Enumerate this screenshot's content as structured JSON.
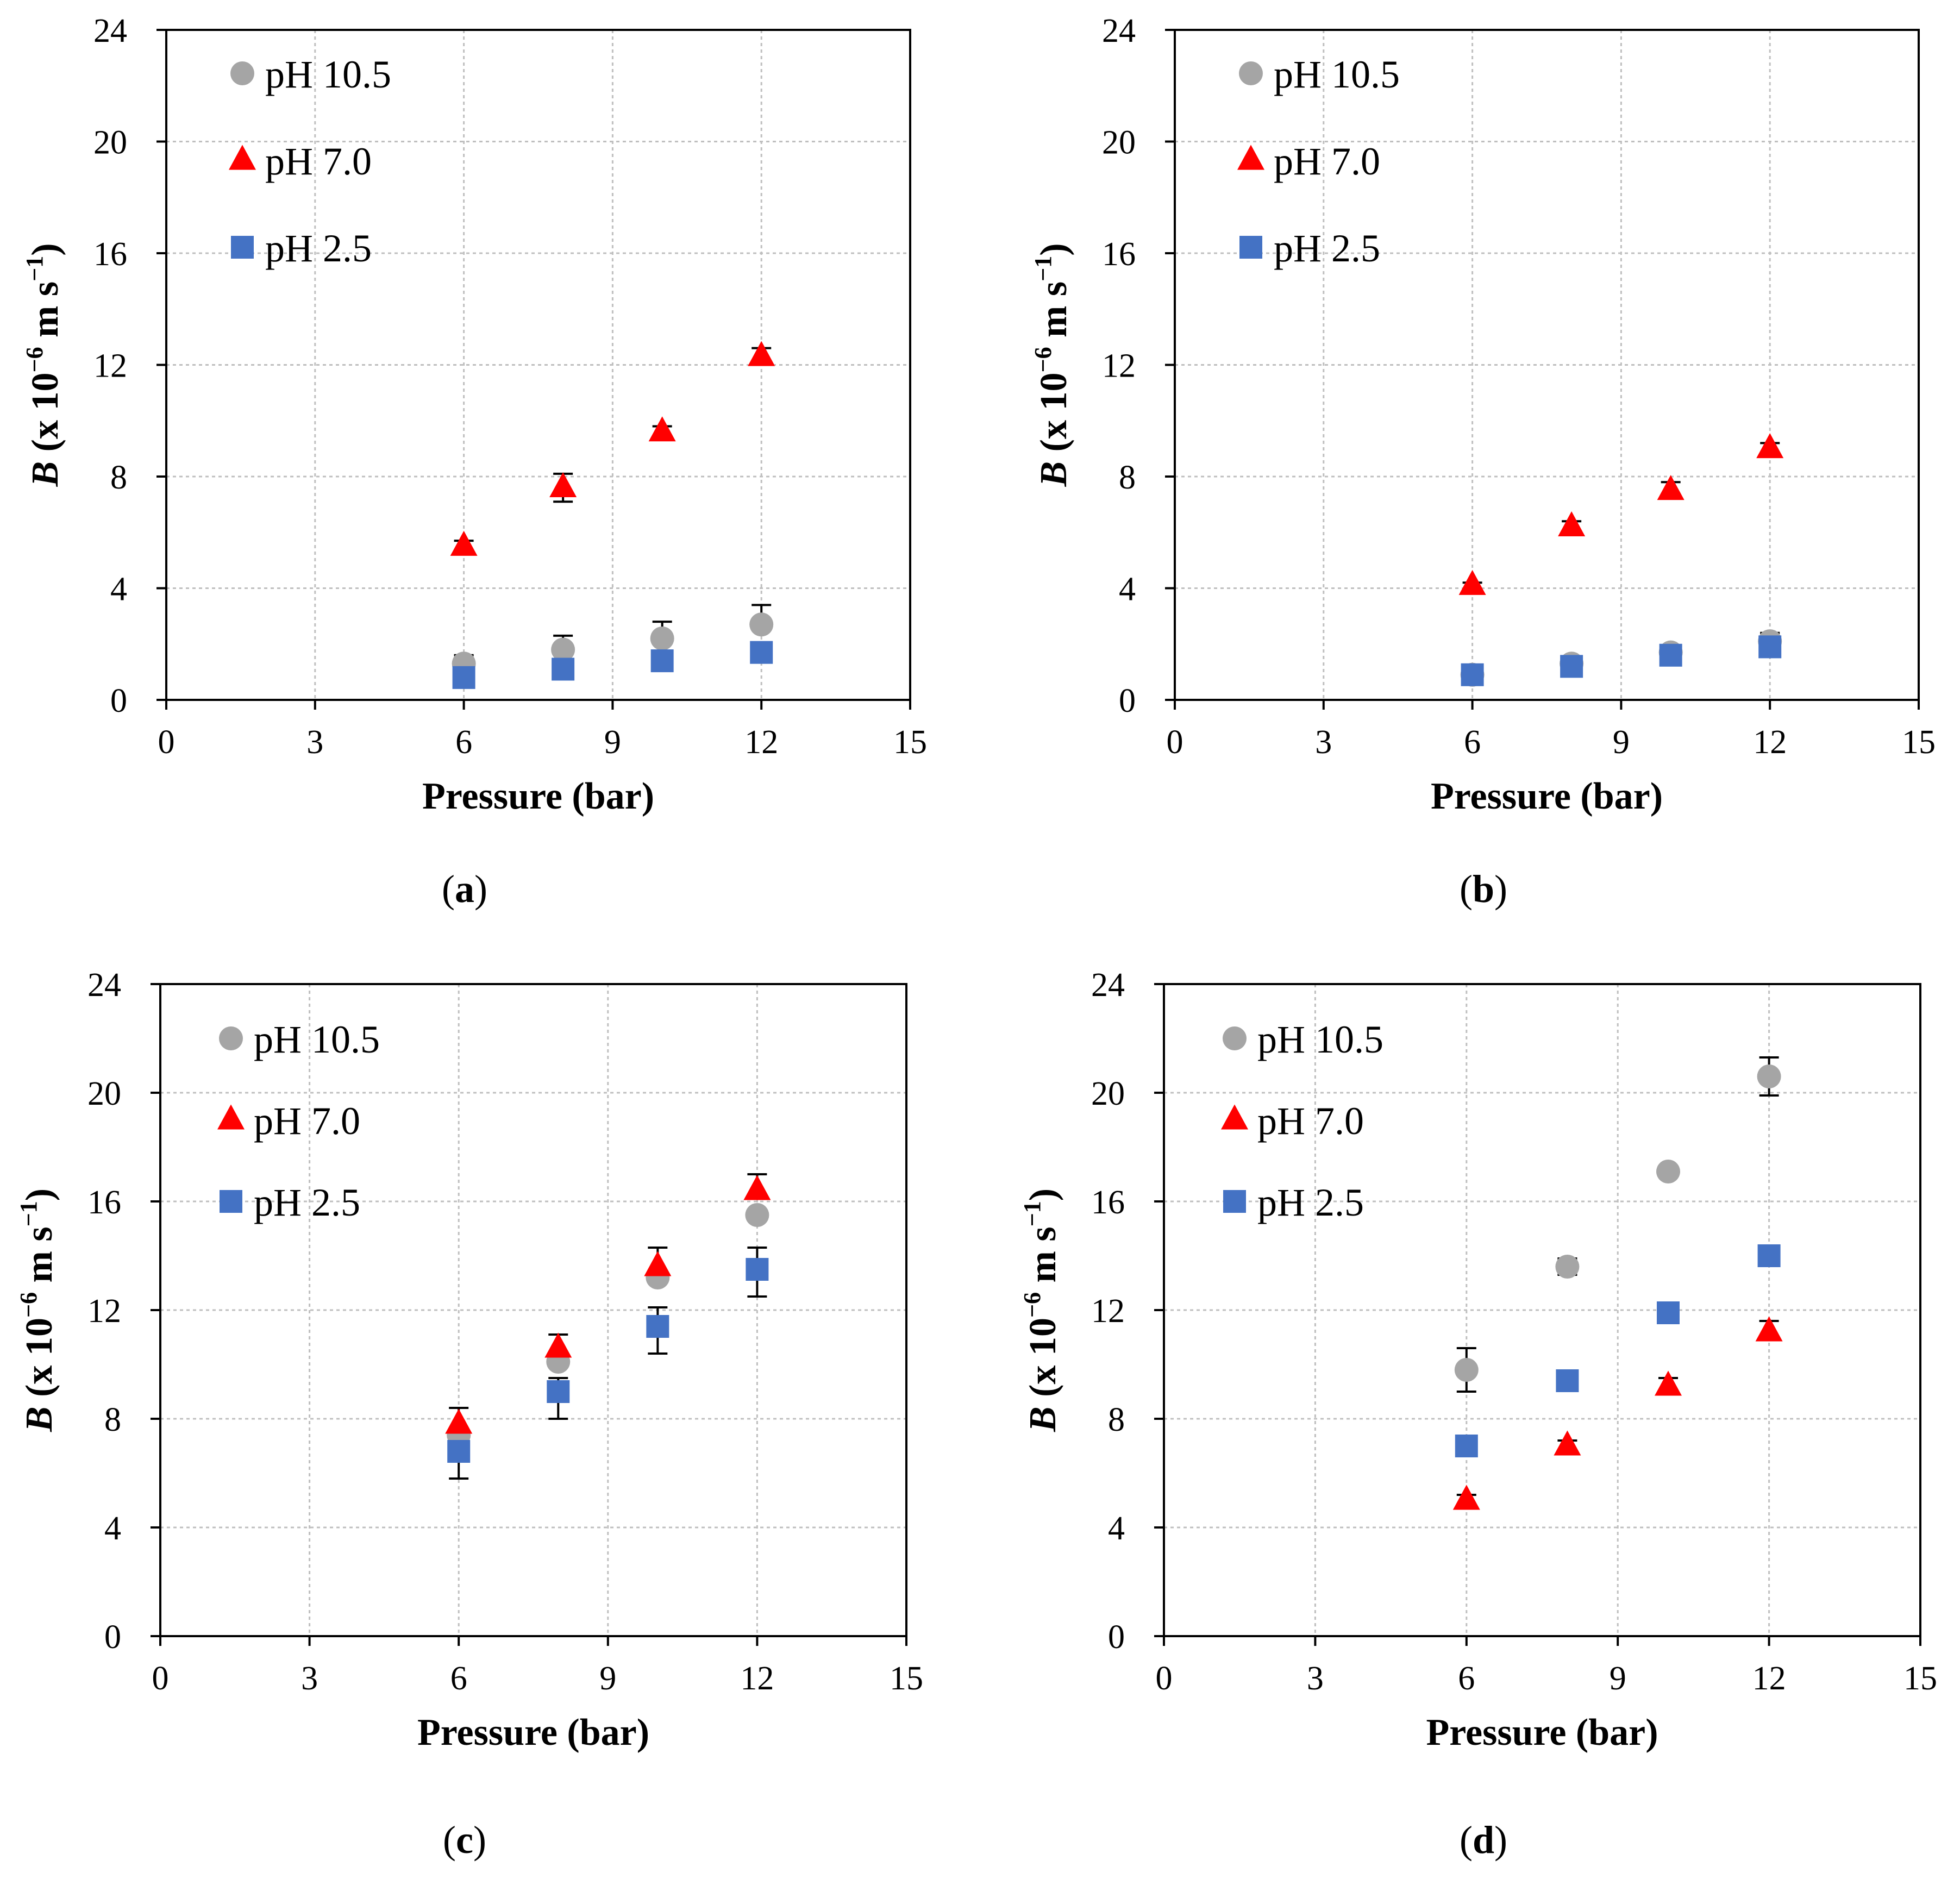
{
  "figure": {
    "panels": [
      "a",
      "b",
      "c",
      "d"
    ]
  },
  "colors": {
    "ph_10_5": "#A5A5A5",
    "ph_7_0": "#FF0000",
    "ph_2_5": "#4472C4",
    "grid": "#BFBFBF",
    "axis": "#000000"
  },
  "chart_data": [
    {
      "id": "a",
      "type": "scatter",
      "caption": "a",
      "xlabel": "Pressure (bar)",
      "ylabel_italic": "B",
      "ylabel_rest": " (x 10",
      "ylabel_exp": "−6",
      "ylabel_units": " m s",
      "ylabel_units_exp": "−1",
      "ylabel_close": ")",
      "xlim": [
        0,
        15
      ],
      "ylim": [
        0,
        24
      ],
      "xticks": [
        0,
        3,
        6,
        9,
        12,
        15
      ],
      "yticks": [
        0,
        4,
        8,
        12,
        16,
        20,
        24
      ],
      "grid": true,
      "legend_position": "top-left",
      "series": [
        {
          "name": "pH 10.5",
          "marker": "circle",
          "color": "#A5A5A5",
          "x": [
            6,
            8,
            10,
            12
          ],
          "y": [
            1.3,
            1.8,
            2.2,
            2.7
          ],
          "err_up": [
            0.3,
            0.5,
            0.6,
            0.7
          ],
          "err_down": [
            0,
            0,
            0,
            0
          ]
        },
        {
          "name": "pH 7.0",
          "marker": "triangle",
          "color": "#FF0000",
          "x": [
            6,
            8,
            10,
            12
          ],
          "y": [
            5.5,
            7.6,
            9.6,
            12.3
          ],
          "err_up": [
            0.2,
            0.5,
            0.2,
            0.3
          ],
          "err_down": [
            0,
            0.5,
            0,
            0
          ]
        },
        {
          "name": "pH 2.5",
          "marker": "square",
          "color": "#4472C4",
          "x": [
            6,
            8,
            10,
            12
          ],
          "y": [
            0.8,
            1.1,
            1.4,
            1.7
          ],
          "err_up": [
            0,
            0,
            0,
            0.3
          ],
          "err_down": [
            0,
            0,
            0,
            0
          ]
        }
      ]
    },
    {
      "id": "b",
      "type": "scatter",
      "caption": "b",
      "xlabel": "Pressure (bar)",
      "ylabel_italic": "B",
      "ylabel_rest": " (x 10",
      "ylabel_exp": "−6",
      "ylabel_units": " m s",
      "ylabel_units_exp": "−1",
      "ylabel_close": ")",
      "xlim": [
        0,
        15
      ],
      "ylim": [
        0,
        24
      ],
      "xticks": [
        0,
        3,
        6,
        9,
        12,
        15
      ],
      "yticks": [
        0,
        4,
        8,
        12,
        16,
        20,
        24
      ],
      "grid": true,
      "legend_position": "top-left",
      "series": [
        {
          "name": "pH 10.5",
          "marker": "circle",
          "color": "#A5A5A5",
          "x": [
            6,
            8,
            10,
            12
          ],
          "y": [
            0.9,
            1.3,
            1.7,
            2.1
          ],
          "err_up": [
            0,
            0,
            0.2,
            0.3
          ],
          "err_down": [
            0,
            0,
            0,
            0
          ]
        },
        {
          "name": "pH 7.0",
          "marker": "triangle",
          "color": "#FF0000",
          "x": [
            6,
            8,
            10,
            12
          ],
          "y": [
            4.1,
            6.2,
            7.5,
            9.0
          ],
          "err_up": [
            0.1,
            0.2,
            0.3,
            0.2
          ],
          "err_down": [
            0,
            0,
            0,
            0
          ]
        },
        {
          "name": "pH 2.5",
          "marker": "square",
          "color": "#4472C4",
          "x": [
            6,
            8,
            10,
            12
          ],
          "y": [
            0.9,
            1.2,
            1.6,
            1.9
          ],
          "err_up": [
            0,
            0,
            0,
            0
          ],
          "err_down": [
            0,
            0,
            0,
            0
          ]
        }
      ]
    },
    {
      "id": "c",
      "type": "scatter",
      "caption": "c",
      "xlabel": "Pressure (bar)",
      "ylabel_italic": "B",
      "ylabel_rest": " (x 10",
      "ylabel_exp": "−6",
      "ylabel_units": " m s",
      "ylabel_units_exp": "−1",
      "ylabel_close": ")",
      "xlim": [
        0,
        15
      ],
      "ylim": [
        0,
        24
      ],
      "xticks": [
        0,
        3,
        6,
        9,
        12,
        15
      ],
      "yticks": [
        0,
        4,
        8,
        12,
        16,
        20,
        24
      ],
      "grid": true,
      "legend_position": "top-left",
      "series": [
        {
          "name": "pH 10.5",
          "marker": "circle",
          "color": "#A5A5A5",
          "x": [
            6,
            8,
            10,
            12
          ],
          "y": [
            7.4,
            10.1,
            13.2,
            15.5
          ],
          "err_up": [
            0,
            0,
            0,
            0
          ],
          "err_down": [
            0,
            0,
            0,
            0
          ]
        },
        {
          "name": "pH 7.0",
          "marker": "triangle",
          "color": "#FF0000",
          "x": [
            6,
            8,
            10,
            12
          ],
          "y": [
            7.8,
            10.6,
            13.6,
            16.4
          ],
          "err_up": [
            0.6,
            0.5,
            0.7,
            0.6
          ],
          "err_down": [
            0,
            0,
            0,
            0
          ]
        },
        {
          "name": "pH 2.5",
          "marker": "square",
          "color": "#4472C4",
          "x": [
            6,
            8,
            10,
            12
          ],
          "y": [
            6.8,
            9.0,
            11.4,
            13.5
          ],
          "err_up": [
            0,
            0.5,
            0.7,
            0.8
          ],
          "err_down": [
            1.0,
            1.0,
            1.0,
            1.0
          ]
        }
      ]
    },
    {
      "id": "d",
      "type": "scatter",
      "caption": "d",
      "xlabel": "Pressure (bar)",
      "ylabel_italic": "B",
      "ylabel_rest": " (x 10",
      "ylabel_exp": "−6",
      "ylabel_units": " m s",
      "ylabel_units_exp": "−1",
      "ylabel_close": ")",
      "xlim": [
        0,
        15
      ],
      "ylim": [
        0,
        24
      ],
      "xticks": [
        0,
        3,
        6,
        9,
        12,
        15
      ],
      "yticks": [
        0,
        4,
        8,
        12,
        16,
        20,
        24
      ],
      "grid": true,
      "legend_position": "top-left",
      "series": [
        {
          "name": "pH 10.5",
          "marker": "circle",
          "color": "#A5A5A5",
          "x": [
            6,
            8,
            10,
            12
          ],
          "y": [
            9.8,
            13.6,
            17.1,
            20.6
          ],
          "err_up": [
            0.8,
            0.3,
            0,
            0.7
          ],
          "err_down": [
            0.8,
            0.3,
            0,
            0.7
          ]
        },
        {
          "name": "pH 7.0",
          "marker": "triangle",
          "color": "#FF0000",
          "x": [
            6,
            8,
            10,
            12
          ],
          "y": [
            5.0,
            7.0,
            9.2,
            11.2
          ],
          "err_up": [
            0.2,
            0.2,
            0.3,
            0.4
          ],
          "err_down": [
            0,
            0,
            0,
            0
          ]
        },
        {
          "name": "pH 2.5",
          "marker": "square",
          "color": "#4472C4",
          "x": [
            6,
            8,
            10,
            12
          ],
          "y": [
            7.0,
            9.4,
            11.9,
            14.0
          ],
          "err_up": [
            0,
            0,
            0,
            0
          ],
          "err_down": [
            0,
            0,
            0,
            0
          ]
        }
      ]
    }
  ]
}
